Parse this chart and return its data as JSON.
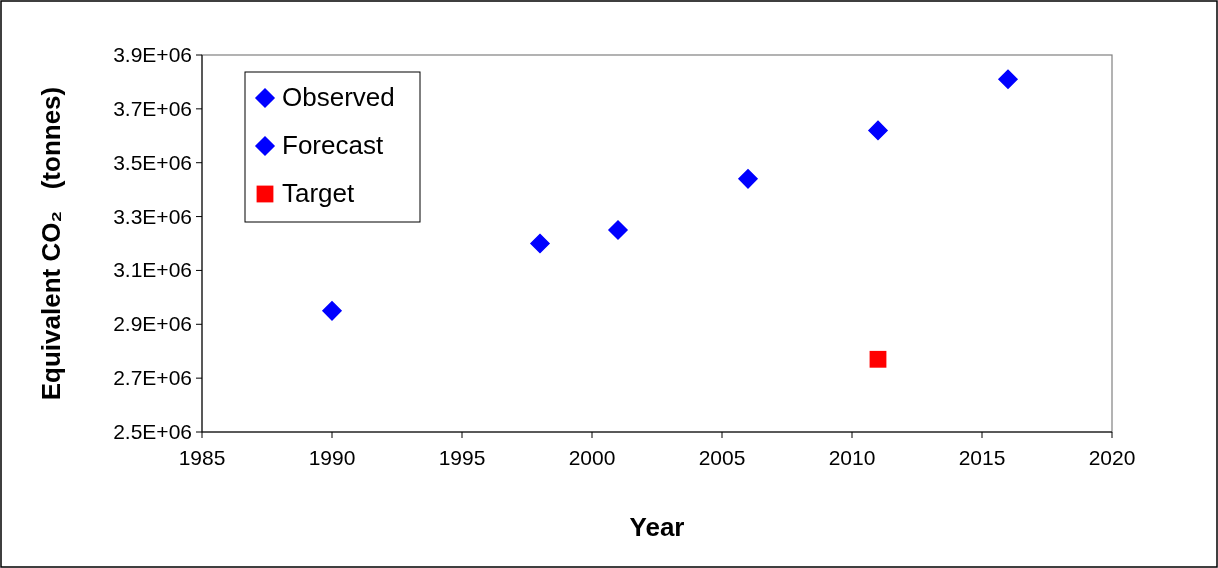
{
  "chart_data": {
    "type": "scatter",
    "xlabel": "Year",
    "ylabel": "Equivalent CO₂   (tonnes)",
    "xlim": [
      1985,
      2020
    ],
    "xticks": [
      1985,
      1990,
      1995,
      2000,
      2005,
      2010,
      2015,
      2020
    ],
    "ylim": [
      2500000,
      3900000
    ],
    "yticks": [
      {
        "value": 2500000,
        "label": "2.5E+06"
      },
      {
        "value": 2700000,
        "label": "2.7E+06"
      },
      {
        "value": 2900000,
        "label": "2.9E+06"
      },
      {
        "value": 3100000,
        "label": "3.1E+06"
      },
      {
        "value": 3300000,
        "label": "3.3E+06"
      },
      {
        "value": 3500000,
        "label": "3.5E+06"
      },
      {
        "value": 3700000,
        "label": "3.7E+06"
      },
      {
        "value": 3900000,
        "label": "3.9E+06"
      }
    ],
    "legend": "top left",
    "grid": false,
    "series": [
      {
        "name": "Observed",
        "color": "#0000ff",
        "marker": "diamond",
        "x": [
          1990,
          1998
        ],
        "values": [
          2950000,
          3200000
        ]
      },
      {
        "name": "Forecast",
        "color": "#0000ff",
        "marker": "diamond",
        "x": [
          2001,
          2006,
          2011,
          2016
        ],
        "values": [
          3250000,
          3440000,
          3620000,
          3810000
        ]
      },
      {
        "name": "Target",
        "color": "#ff0000",
        "marker": "square",
        "x": [
          2011
        ],
        "values": [
          2770000
        ]
      }
    ]
  }
}
